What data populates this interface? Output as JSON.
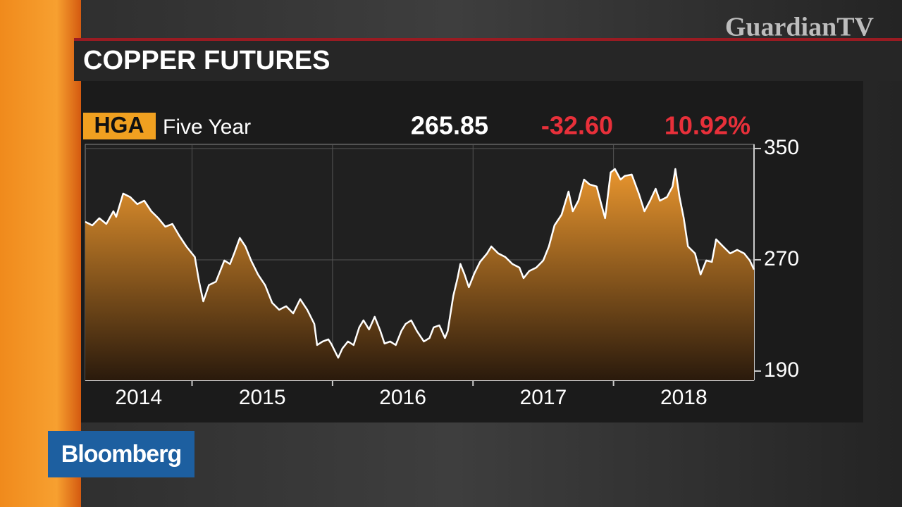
{
  "watermark": "GuardianTV",
  "network": "Bloomberg",
  "chart_data": {
    "type": "area",
    "title": "COPPER FUTURES",
    "ticker": "HGA",
    "period": "Five Year",
    "last": "265.85",
    "change": "-32.60",
    "change_pct": "10.92%",
    "x": [
      2014.24,
      2014.29,
      2014.34,
      2014.39,
      2014.44,
      2014.46,
      2014.51,
      2014.56,
      2014.61,
      2014.66,
      2014.71,
      2014.76,
      2014.81,
      2014.86,
      2014.91,
      2014.96,
      2015.02,
      2015.05,
      2015.08,
      2015.12,
      2015.17,
      2015.2,
      2015.23,
      2015.27,
      2015.3,
      2015.34,
      2015.38,
      2015.42,
      2015.47,
      2015.52,
      2015.57,
      2015.62,
      2015.67,
      2015.72,
      2015.77,
      2015.82,
      2015.87,
      2015.89,
      2015.93,
      2015.97,
      2015.99,
      2016.04,
      2016.07,
      2016.11,
      2016.15,
      2016.19,
      2016.22,
      2016.26,
      2016.3,
      2016.34,
      2016.37,
      2016.41,
      2016.45,
      2016.49,
      2016.52,
      2016.56,
      2016.6,
      2016.65,
      2016.69,
      2016.72,
      2016.76,
      2016.8,
      2016.82,
      2016.86,
      2016.89,
      2016.91,
      2016.94,
      2016.97,
      2017.01,
      2017.05,
      2017.1,
      2017.13,
      2017.18,
      2017.23,
      2017.28,
      2017.33,
      2017.36,
      2017.4,
      2017.45,
      2017.5,
      2017.54,
      2017.58,
      2017.63,
      2017.68,
      2017.71,
      2017.75,
      2017.79,
      2017.83,
      2017.88,
      2017.91,
      2017.94,
      2017.98,
      2018.01,
      2018.05,
      2018.08,
      2018.13,
      2018.18,
      2018.22,
      2018.26,
      2018.3,
      2018.33,
      2018.38,
      2018.42,
      2018.44,
      2018.47,
      2018.5,
      2018.53,
      2018.58,
      2018.62,
      2018.66,
      2018.7,
      2018.73,
      2018.78,
      2018.83,
      2018.88,
      2018.93,
      2018.97,
      2019.0
    ],
    "values": [
      297.3,
      294.8,
      299.9,
      295.8,
      304.9,
      300.9,
      317.6,
      315.1,
      310,
      312.5,
      304.9,
      299.9,
      293.8,
      295.8,
      287.2,
      279.6,
      272,
      254.3,
      240.1,
      251.8,
      254.3,
      261.9,
      269.5,
      267,
      274.6,
      285.7,
      279.6,
      269.5,
      259.4,
      251.8,
      239.1,
      234.1,
      236.6,
      231.5,
      241.7,
      234.1,
      223.9,
      208.7,
      211.3,
      212.8,
      209.8,
      199.6,
      206.2,
      211.3,
      208.7,
      221.4,
      226.5,
      219.9,
      229,
      218.9,
      209.8,
      211.3,
      208.7,
      218.9,
      223.9,
      226.5,
      218.9,
      211.3,
      213.8,
      221.4,
      222.9,
      213.8,
      218.9,
      244.2,
      256.8,
      267,
      259.4,
      250.3,
      260.4,
      268.5,
      274.6,
      279.6,
      274.6,
      272,
      267,
      264.4,
      256.8,
      261.9,
      264.4,
      269.5,
      279.6,
      294.8,
      302.4,
      319.1,
      304.9,
      312.5,
      327.7,
      324.2,
      322.7,
      311,
      299.9,
      332.8,
      335.3,
      327.7,
      330.3,
      331.3,
      317.6,
      304.9,
      312.5,
      321.1,
      312.5,
      315.1,
      322.7,
      335.3,
      315.1,
      299.9,
      279.6,
      274.6,
      259.4,
      269.5,
      268.5,
      284.7,
      279.6,
      274.6,
      277.1,
      274.6,
      269.5,
      263
    ],
    "color": "#ffffff",
    "fill": "#e8952e",
    "xlim": [
      2014.24,
      2019.0
    ],
    "ylim": [
      183.4,
      353
    ],
    "xticks": [
      2014,
      2015,
      2016,
      2017,
      2018
    ],
    "yticks": [
      190,
      270,
      350
    ],
    "grid": true
  }
}
